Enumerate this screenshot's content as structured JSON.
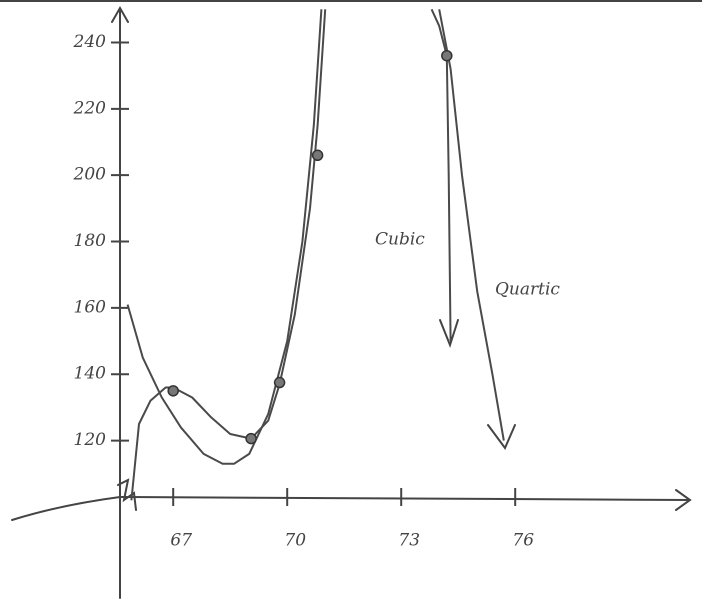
{
  "chart_data": {
    "type": "line",
    "xlim": [
      65.6,
      80.6
    ],
    "ylim": [
      103,
      252.8
    ],
    "xticks": [
      67,
      70,
      73,
      76
    ],
    "yticks": [
      240,
      220,
      200,
      180,
      160,
      140,
      120
    ],
    "grid": false,
    "series": [
      {
        "name": "Cubic",
        "color": "#4a4a4a",
        "x": [
          65.9,
          66.1,
          66.4,
          66.8,
          67.0,
          67.5,
          68.0,
          68.5,
          69.05,
          69.5,
          69.8,
          70.2,
          70.6,
          70.8,
          71.0,
          72.5,
          73.8,
          74.0,
          74.2,
          74.25,
          74.3
        ],
        "values": [
          102,
          125,
          132,
          136,
          136,
          133,
          127,
          122,
          120.6,
          126,
          137,
          158,
          190,
          215,
          250,
          null,
          250,
          245,
          236,
          200,
          150
        ]
      },
      {
        "name": "Quartic",
        "color": "#4a4a4a",
        "x": [
          65.8,
          66.2,
          66.7,
          67.2,
          67.8,
          68.3,
          68.6,
          69.0,
          69.5,
          70.0,
          70.4,
          70.7,
          70.9,
          72.5,
          74.0,
          74.3,
          74.6,
          75.0,
          75.4,
          75.7
        ],
        "values": [
          161,
          145,
          133,
          124,
          116,
          113,
          113,
          116,
          128,
          150,
          180,
          215,
          250,
          null,
          250,
          232,
          200,
          165,
          140,
          120
        ]
      }
    ],
    "points": {
      "x": [
        67.0,
        69.05,
        69.8,
        70.8,
        74.2
      ],
      "values": [
        135,
        120.6,
        137.5,
        206,
        236
      ]
    }
  }
}
